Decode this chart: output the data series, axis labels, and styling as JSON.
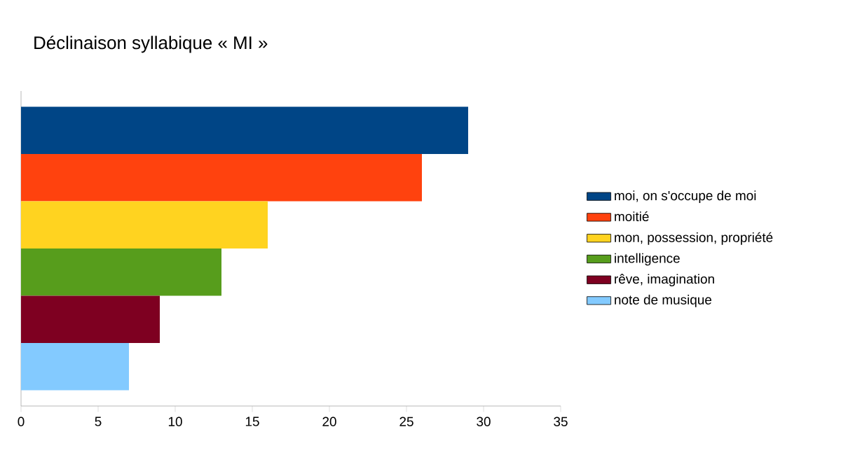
{
  "chart_data": {
    "type": "bar",
    "orientation": "horizontal",
    "title": "Déclinaison syllabique « MI »",
    "categories": [
      null
    ],
    "series": [
      {
        "name": "moi, on s'occupe de moi",
        "color": "#004586",
        "values": [
          29
        ]
      },
      {
        "name": "moitié",
        "color": "#ff420e",
        "values": [
          26
        ]
      },
      {
        "name": "mon, possession, propriété",
        "color": "#ffd320",
        "values": [
          16
        ]
      },
      {
        "name": "intelligence",
        "color": "#579d1c",
        "values": [
          13
        ]
      },
      {
        "name": "rêve, imagination",
        "color": "#7e0021",
        "values": [
          9
        ]
      },
      {
        "name": "note de musique",
        "color": "#83caff",
        "values": [
          7
        ]
      }
    ],
    "xlim": [
      0,
      35
    ],
    "xticks": [
      0,
      5,
      10,
      15,
      20,
      25,
      30,
      35
    ],
    "grid": false,
    "legend": "right"
  }
}
